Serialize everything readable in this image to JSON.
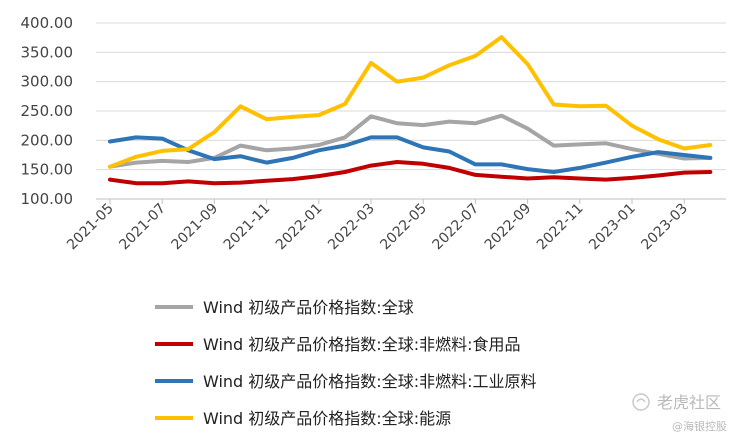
{
  "chart_data": {
    "type": "line",
    "x": [
      "2021-05",
      "2021-06",
      "2021-07",
      "2021-08",
      "2021-09",
      "2021-10",
      "2021-11",
      "2021-12",
      "2022-01",
      "2022-02",
      "2022-03",
      "2022-04",
      "2022-05",
      "2022-06",
      "2022-07",
      "2022-08",
      "2022-09",
      "2022-10",
      "2022-11",
      "2022-12",
      "2023-01",
      "2023-02",
      "2023-03",
      "2023-04"
    ],
    "xticks": [
      "2021-05",
      "2021-07",
      "2021-09",
      "2021-11",
      "2022-01",
      "2022-03",
      "2022-05",
      "2022-07",
      "2022-09",
      "2022-11",
      "2023-01",
      "2023-03"
    ],
    "ylim": [
      100,
      400
    ],
    "yticks": [
      "100.00",
      "150.00",
      "200.00",
      "250.00",
      "300.00",
      "350.00",
      "400.00"
    ],
    "grid": true,
    "legend_position": "bottom",
    "series": [
      {
        "name": "Wind 初级产品价格指数:全球",
        "color": "#a5a5a5",
        "values": [
          155,
          162,
          165,
          163,
          170,
          191,
          183,
          186,
          192,
          205,
          241,
          229,
          226,
          232,
          229,
          242,
          220,
          191,
          193,
          195,
          185,
          177,
          169,
          170
        ]
      },
      {
        "name": "Wind 初级产品价格指数:全球:非燃料:食用品",
        "color": "#c00000",
        "values": [
          133,
          127,
          127,
          130,
          127,
          128,
          131,
          134,
          139,
          146,
          157,
          163,
          160,
          153,
          141,
          138,
          135,
          137,
          135,
          133,
          136,
          140,
          145,
          146
        ]
      },
      {
        "name": "Wind 初级产品价格指数:全球:非燃料:工业原料",
        "color": "#2e75b6",
        "values": [
          198,
          205,
          203,
          183,
          168,
          173,
          162,
          170,
          183,
          191,
          205,
          205,
          188,
          181,
          159,
          159,
          151,
          146,
          153,
          162,
          172,
          180,
          175,
          170
        ]
      },
      {
        "name": "Wind 初级产品价格指数:全球:能源",
        "color": "#ffc000",
        "values": [
          155,
          172,
          182,
          185,
          214,
          258,
          236,
          240,
          243,
          262,
          332,
          300,
          307,
          328,
          344,
          376,
          330,
          261,
          258,
          259,
          225,
          202,
          186,
          192
        ]
      }
    ]
  },
  "watermark": {
    "main": "老虎社区",
    "sub": "@海银控股"
  }
}
